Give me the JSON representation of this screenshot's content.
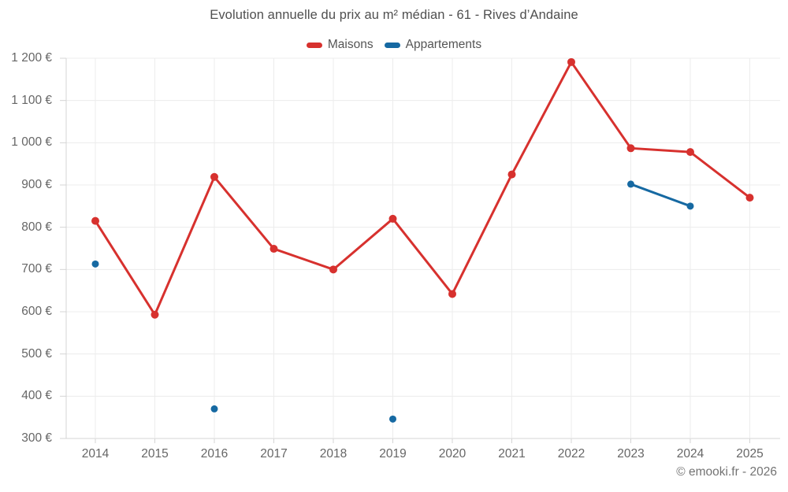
{
  "title": "Evolution annuelle du prix au m² médian - 61 - Rives d’Andaine",
  "legend": {
    "items": [
      {
        "label": "Maisons",
        "color": "#d7312e"
      },
      {
        "label": "Appartements",
        "color": "#1669a2"
      }
    ]
  },
  "copyright": "© emooki.fr - 2026",
  "style": {
    "grid_color": "#ececec",
    "axis_color": "#d4d4d4",
    "text_color": "#666666",
    "title_color": "#4f4f4f"
  },
  "chart_data": {
    "type": "line",
    "title": "Evolution annuelle du prix au m² médian - 61 - Rives d’Andaine",
    "x": [
      2014,
      2015,
      2016,
      2017,
      2018,
      2019,
      2020,
      2021,
      2022,
      2023,
      2024,
      2025
    ],
    "series": [
      {
        "name": "Maisons",
        "color": "#d7312e",
        "values": [
          815,
          593,
          919,
          749,
          700,
          820,
          642,
          925,
          1191,
          987,
          978,
          870
        ]
      },
      {
        "name": "Appartements",
        "color": "#1669a2",
        "values": [
          713,
          null,
          370,
          null,
          null,
          346,
          null,
          null,
          null,
          902,
          850,
          null
        ]
      }
    ],
    "ylim": [
      300,
      1200
    ],
    "yticks": [
      {
        "value": 300,
        "label": "300 €"
      },
      {
        "value": 400,
        "label": "400 €"
      },
      {
        "value": 500,
        "label": "500 €"
      },
      {
        "value": 600,
        "label": "600 €"
      },
      {
        "value": 700,
        "label": "700 €"
      },
      {
        "value": 800,
        "label": "800 €"
      },
      {
        "value": 900,
        "label": "900 €"
      },
      {
        "value": 1000,
        "label": "1 000 €"
      },
      {
        "value": 1100,
        "label": "1 100 €"
      },
      {
        "value": 1200,
        "label": "1 200 €"
      }
    ],
    "grid": true,
    "legend_position": "top",
    "xlabel": "",
    "ylabel": ""
  }
}
